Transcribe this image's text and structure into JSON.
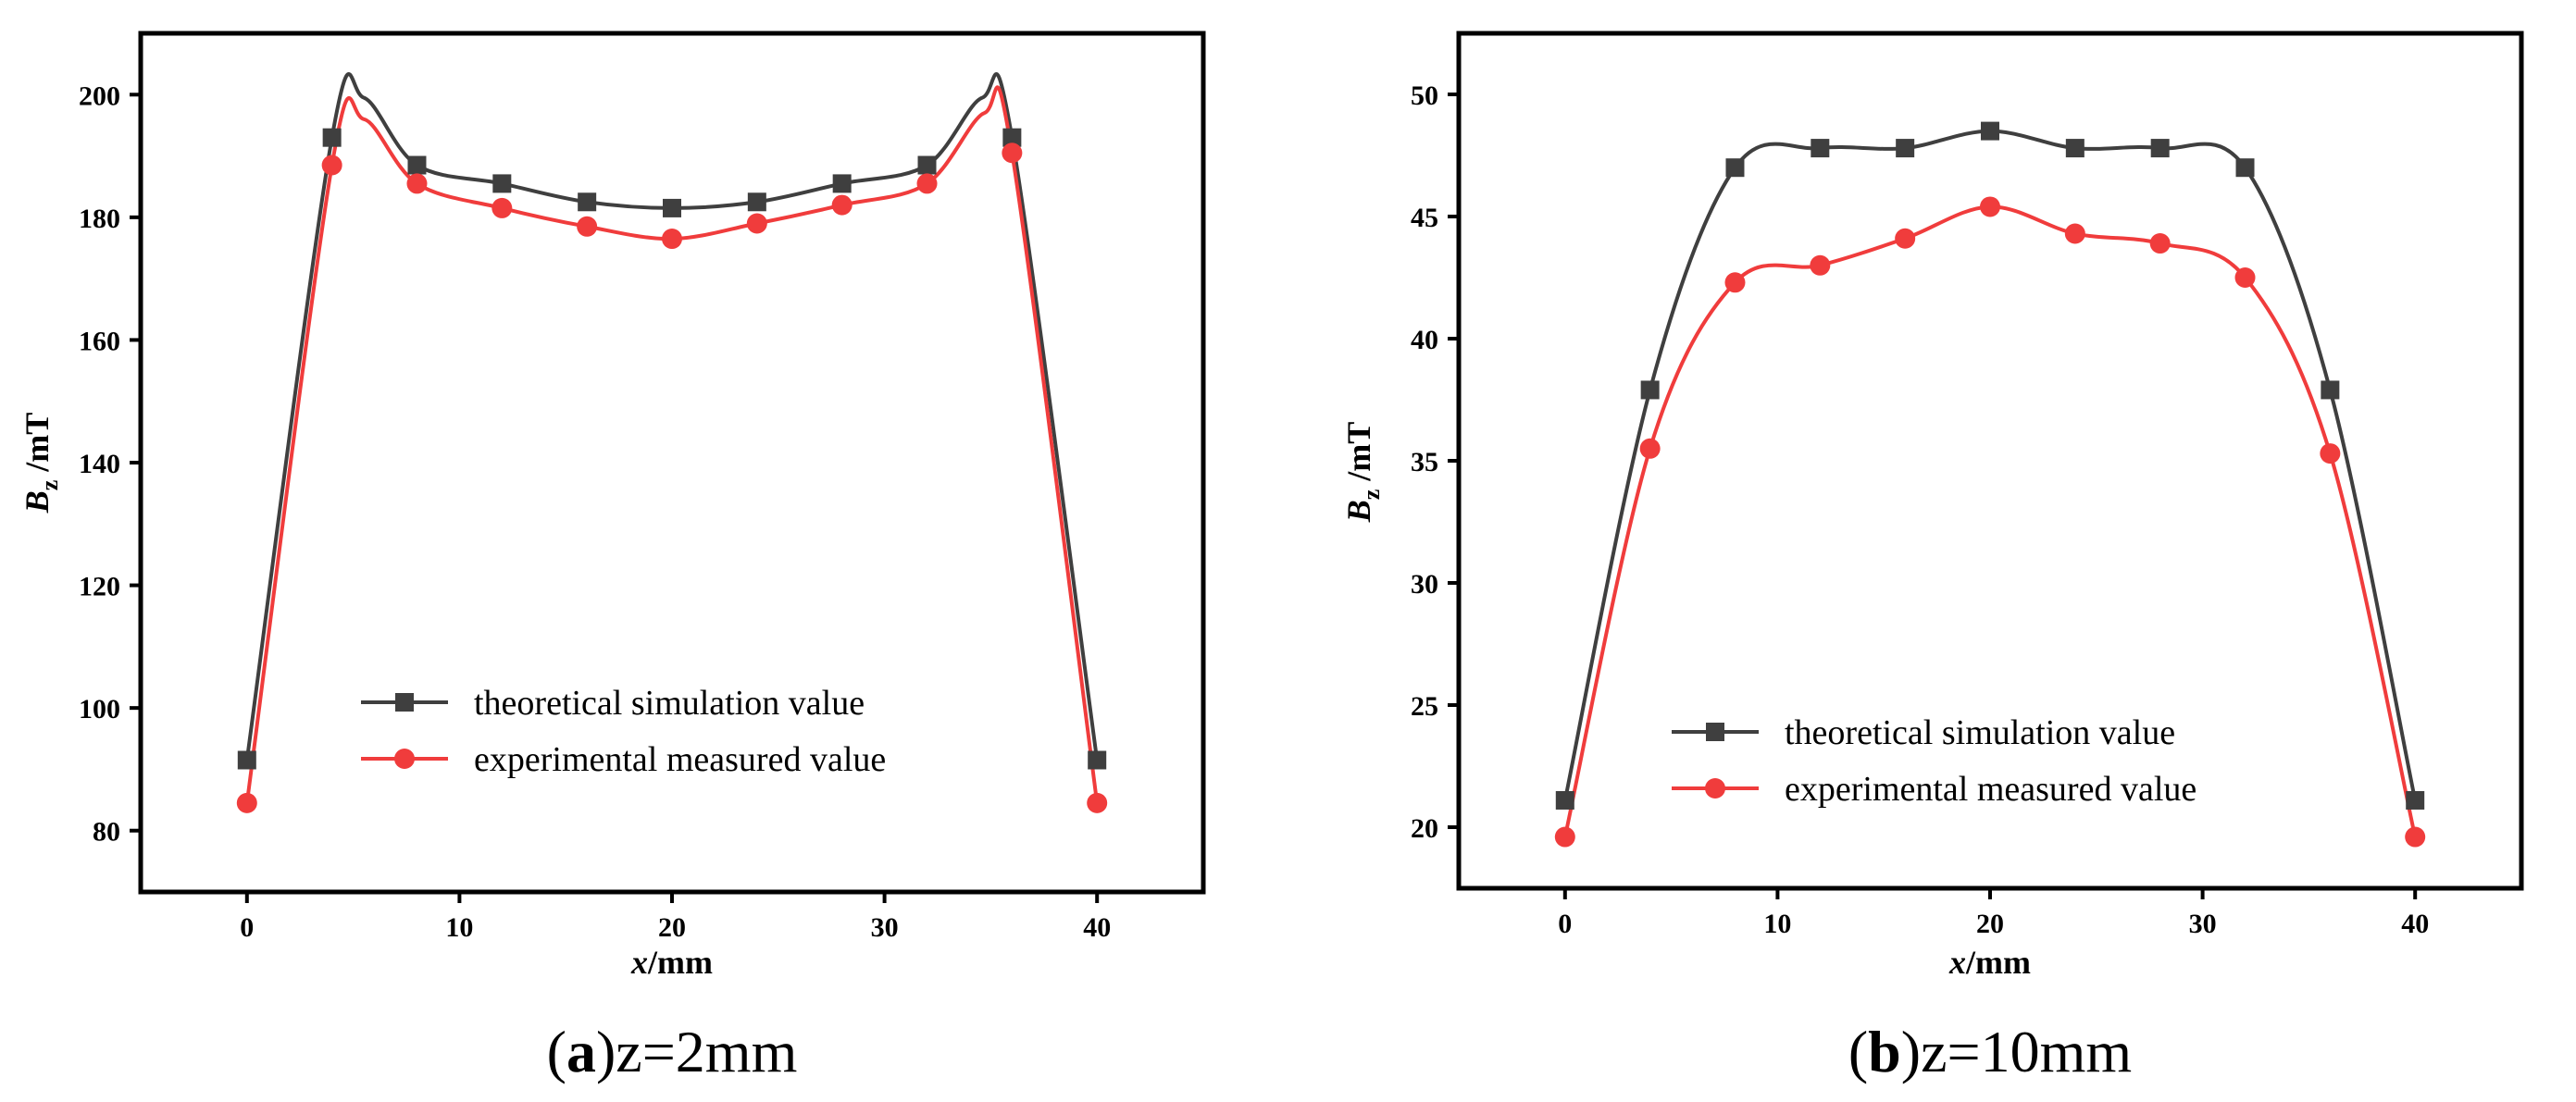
{
  "chart_data": [
    {
      "type": "line",
      "caption_letter": "a",
      "caption_open": "(",
      "caption_rest": ")z=2mm",
      "xlabel_var": "x",
      "xlabel_unit": "/mm",
      "ylabel_var": "B",
      "ylabel_sub": "z",
      "ylabel_unit": " /mT",
      "xlim": [
        -5,
        45
      ],
      "ylim": [
        70,
        210
      ],
      "xticks": [
        0,
        10,
        20,
        30,
        40
      ],
      "yticks": [
        80,
        100,
        120,
        140,
        160,
        180,
        200
      ],
      "legend_position": "lower-center",
      "series": [
        {
          "name": "theoretical simulation value",
          "color": "#3f3f3f",
          "marker": "square",
          "x": [
            0,
            4,
            8,
            12,
            16,
            20,
            24,
            28,
            32,
            36,
            40
          ],
          "y": [
            91.5,
            193,
            188.5,
            185.5,
            182.5,
            181.5,
            182.5,
            185.5,
            188.5,
            193,
            91.5
          ],
          "curve_peaks": [
            [
              5.5,
              199.5
            ],
            [
              34.6,
              199.5
            ]
          ]
        },
        {
          "name": "experimental measured value",
          "color": "#f03c3c",
          "marker": "circle",
          "x": [
            0,
            4,
            8,
            12,
            16,
            20,
            24,
            28,
            32,
            36,
            40
          ],
          "y": [
            84.5,
            188.5,
            185.5,
            181.5,
            178.5,
            176.5,
            179,
            182,
            185.5,
            190.5,
            84.5
          ],
          "curve_peaks": [
            [
              5.5,
              196
            ],
            [
              34.7,
              197
            ]
          ]
        }
      ]
    },
    {
      "type": "line",
      "caption_letter": "b",
      "caption_open": "(",
      "caption_rest": ")z=10mm",
      "xlabel_var": "x",
      "xlabel_unit": "/mm",
      "ylabel_var": "B",
      "ylabel_sub": "z",
      "ylabel_unit": " /mT",
      "xlim": [
        -5,
        45
      ],
      "ylim": [
        17.5,
        52.5
      ],
      "xticks": [
        0,
        10,
        20,
        30,
        40
      ],
      "yticks": [
        20,
        25,
        30,
        35,
        40,
        45,
        50
      ],
      "legend_position": "lower-center",
      "series": [
        {
          "name": "theoretical simulation value",
          "color": "#3f3f3f",
          "marker": "square",
          "x": [
            0,
            4,
            8,
            12,
            16,
            20,
            24,
            28,
            32,
            36,
            40
          ],
          "y": [
            21.1,
            37.9,
            47,
            47.8,
            47.8,
            48.5,
            47.8,
            47.8,
            47,
            37.9,
            21.1
          ]
        },
        {
          "name": "experimental measured value",
          "color": "#f03c3c",
          "marker": "circle",
          "x": [
            0,
            4,
            8,
            12,
            16,
            20,
            24,
            28,
            32,
            36,
            40
          ],
          "y": [
            19.6,
            35.5,
            42.3,
            43,
            44.1,
            45.4,
            44.3,
            43.9,
            42.5,
            35.3,
            19.6
          ]
        }
      ]
    }
  ]
}
